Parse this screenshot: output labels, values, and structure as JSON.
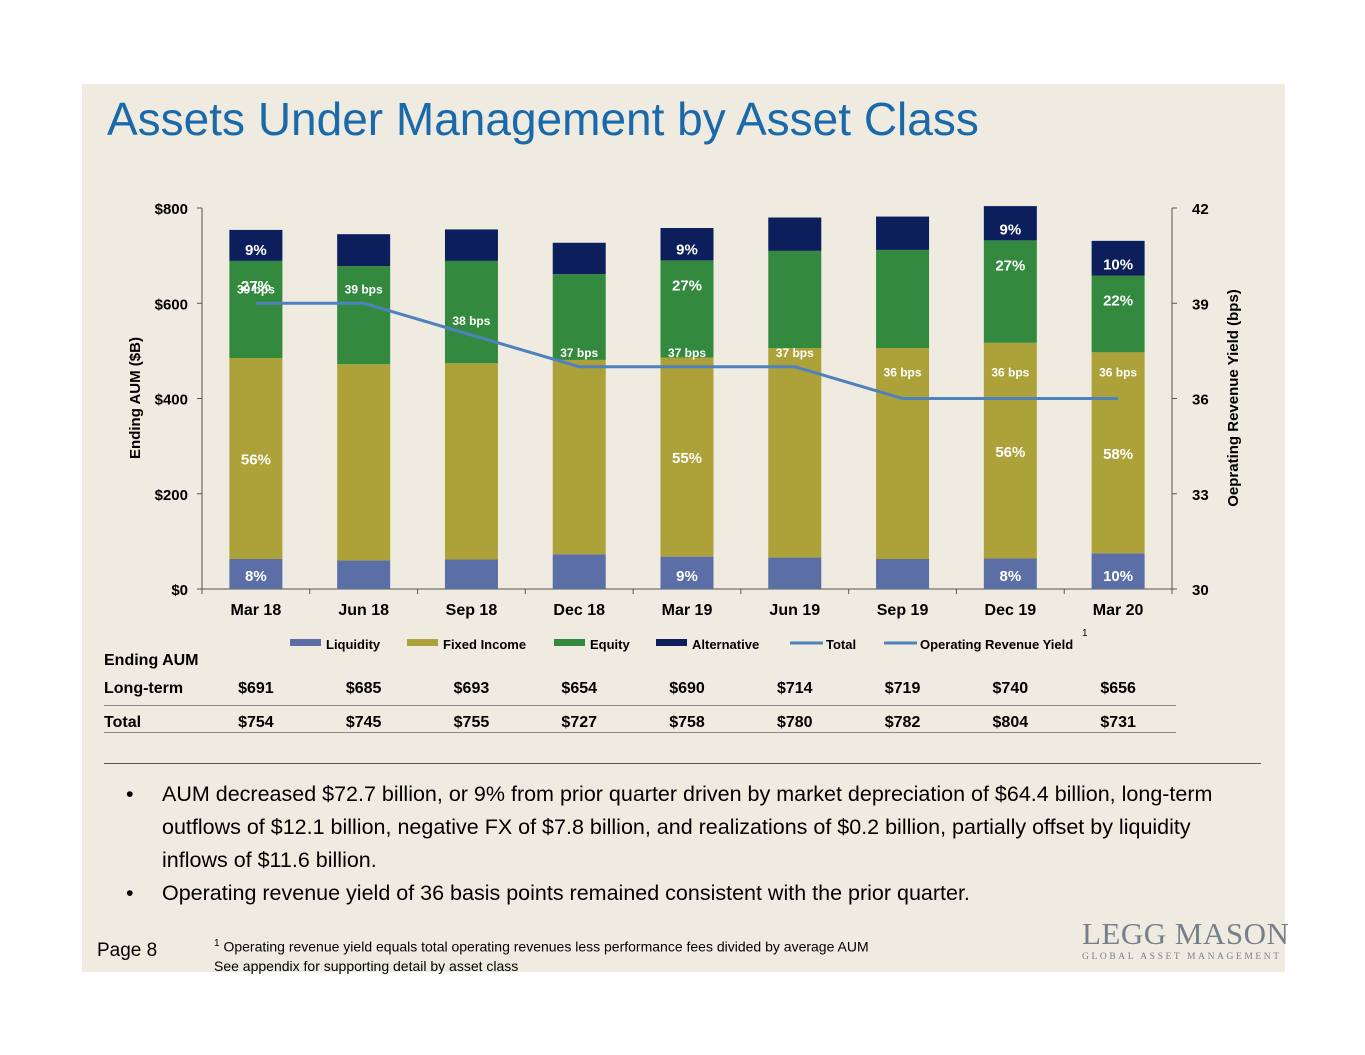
{
  "title": "Assets Under Management by Asset Class",
  "chart_data": {
    "type": "bar",
    "stacked": true,
    "categories": [
      "Mar 18",
      "Jun 18",
      "Sep 18",
      "Dec 18",
      "Mar 19",
      "Jun 19",
      "Sep 19",
      "Dec 19",
      "Mar 20"
    ],
    "series": [
      {
        "name": "Liquidity",
        "color": "#5b6fa6",
        "values": [
          63,
          60,
          62,
          73,
          68,
          66,
          63,
          64,
          75
        ]
      },
      {
        "name": "Fixed Income",
        "color": "#ada239",
        "values": [
          422,
          412,
          412,
          408,
          418,
          440,
          443,
          453,
          422
        ]
      },
      {
        "name": "Equity",
        "color": "#338a3f",
        "values": [
          204,
          206,
          215,
          180,
          204,
          204,
          206,
          215,
          161
        ]
      },
      {
        "name": "Alternative",
        "color": "#0c1f5c",
        "values": [
          65,
          67,
          66,
          66,
          68,
          70,
          70,
          72,
          73
        ]
      }
    ],
    "line": {
      "name": "Operating Revenue Yield",
      "color": "#4f81bd",
      "axis": "right",
      "values": [
        39,
        39,
        38,
        37,
        37,
        37,
        36,
        36,
        36
      ],
      "labels": [
        "39 bps",
        "39 bps",
        "38 bps",
        "37 bps",
        "37 bps",
        "37 bps",
        "36 bps",
        "36 bps",
        "36 bps"
      ]
    },
    "legend": [
      "Liquidity",
      "Fixed Income",
      "Equity",
      "Alternative",
      "Total",
      "Operating Revenue Yield"
    ],
    "legend_footnote": "1",
    "ylabel": "Ending AUM ($B)",
    "y2label": "Oeprating Revenue Yield (bps)",
    "ylim": [
      0,
      800
    ],
    "y2lim": [
      30,
      42
    ],
    "yticks": [
      "$0",
      "$200",
      "$400",
      "$600",
      "$800"
    ],
    "y2ticks": [
      "30",
      "33",
      "36",
      "39",
      "42"
    ],
    "segment_labels": [
      [
        "8%",
        "56%",
        "27%",
        "9%"
      ],
      [
        "",
        "",
        "",
        ""
      ],
      [
        "",
        "",
        "",
        ""
      ],
      [
        "",
        "",
        "",
        ""
      ],
      [
        "9%",
        "55%",
        "27%",
        "9%"
      ],
      [
        "",
        "",
        "",
        ""
      ],
      [
        "",
        "",
        "",
        ""
      ],
      [
        "8%",
        "56%",
        "27%",
        "9%"
      ],
      [
        "10%",
        "58%",
        "22%",
        "10%"
      ]
    ]
  },
  "table": {
    "header": "Ending AUM",
    "rows": [
      {
        "label": "Long-term",
        "values": [
          "$691",
          "$685",
          "$693",
          "$654",
          "$690",
          "$714",
          "$719",
          "$740",
          "$656"
        ]
      },
      {
        "label": "Total",
        "values": [
          "$754",
          "$745",
          "$755",
          "$727",
          "$758",
          "$780",
          "$782",
          "$804",
          "$731"
        ]
      }
    ]
  },
  "bullets": [
    "AUM decreased $72.7 billion, or 9% from prior quarter driven by market depreciation of $64.4 billion, long-term outflows of $12.1 billion, negative FX of $7.8 billion, and realizations of $0.2 billion, partially offset by liquidity inflows of $11.6 billion.",
    "Operating revenue yield of 36 basis points remained consistent with the prior quarter."
  ],
  "footnote": {
    "marker": "1",
    "line1": "Operating revenue yield equals total operating revenues less performance fees divided by average AUM",
    "line2": "See appendix for supporting detail by asset class"
  },
  "page": "Page 8",
  "logo": {
    "name": "LEGG MASON",
    "tagline": "GLOBAL ASSET MANAGEMENT"
  }
}
